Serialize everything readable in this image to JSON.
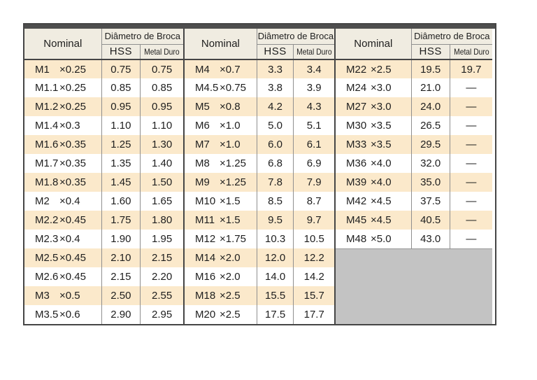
{
  "table": {
    "header": {
      "nominal_label": "Nominal",
      "diameter_label": "Diâmetro de Broca",
      "hss_label": "HSS",
      "metal_duro_label": "Metal Duro"
    },
    "colors": {
      "top_bar": "#4e4e4e",
      "header_bg": "#f0ece1",
      "row_band_bg": "#fbe9cb",
      "row_plain_bg": "#ffffff",
      "empty_area_bg": "#c3c3c3",
      "outer_border": "#454545",
      "inner_line": "#8f8f8f",
      "text": "#1e1e1e"
    },
    "groups": [
      {
        "empty_rows": 0,
        "rows": [
          {
            "size": "M1",
            "pitch": "×0.25",
            "hss": "0.75",
            "metal_duro": "0.75"
          },
          {
            "size": "M1.1",
            "pitch": "×0.25",
            "hss": "0.85",
            "metal_duro": "0.85"
          },
          {
            "size": "M1.2",
            "pitch": "×0.25",
            "hss": "0.95",
            "metal_duro": "0.95"
          },
          {
            "size": "M1.4",
            "pitch": "×0.3",
            "hss": "1.10",
            "metal_duro": "1.10"
          },
          {
            "size": "M1.6",
            "pitch": "×0.35",
            "hss": "1.25",
            "metal_duro": "1.30"
          },
          {
            "size": "M1.7",
            "pitch": "×0.35",
            "hss": "1.35",
            "metal_duro": "1.40"
          },
          {
            "size": "M1.8",
            "pitch": "×0.35",
            "hss": "1.45",
            "metal_duro": "1.50"
          },
          {
            "size": "M2",
            "pitch": "×0.4",
            "hss": "1.60",
            "metal_duro": "1.65"
          },
          {
            "size": "M2.2",
            "pitch": "×0.45",
            "hss": "1.75",
            "metal_duro": "1.80"
          },
          {
            "size": "M2.3",
            "pitch": "×0.4",
            "hss": "1.90",
            "metal_duro": "1.95"
          },
          {
            "size": "M2.5",
            "pitch": "×0.45",
            "hss": "2.10",
            "metal_duro": "2.15"
          },
          {
            "size": "M2.6",
            "pitch": "×0.45",
            "hss": "2.15",
            "metal_duro": "2.20"
          },
          {
            "size": "M3",
            "pitch": "×0.5",
            "hss": "2.50",
            "metal_duro": "2.55"
          },
          {
            "size": "M3.5",
            "pitch": "×0.6",
            "hss": "2.90",
            "metal_duro": "2.95"
          }
        ]
      },
      {
        "empty_rows": 0,
        "rows": [
          {
            "size": "M4",
            "pitch": "×0.7",
            "hss": "3.3",
            "metal_duro": "3.4"
          },
          {
            "size": "M4.5",
            "pitch": "×0.75",
            "hss": "3.8",
            "metal_duro": "3.9"
          },
          {
            "size": "M5",
            "pitch": "×0.8",
            "hss": "4.2",
            "metal_duro": "4.3"
          },
          {
            "size": "M6",
            "pitch": "×1.0",
            "hss": "5.0",
            "metal_duro": "5.1"
          },
          {
            "size": "M7",
            "pitch": "×1.0",
            "hss": "6.0",
            "metal_duro": "6.1"
          },
          {
            "size": "M8",
            "pitch": "×1.25",
            "hss": "6.8",
            "metal_duro": "6.9"
          },
          {
            "size": "M9",
            "pitch": "×1.25",
            "hss": "7.8",
            "metal_duro": "7.9"
          },
          {
            "size": "M10",
            "pitch": "×1.5",
            "hss": "8.5",
            "metal_duro": "8.7"
          },
          {
            "size": "M11",
            "pitch": "×1.5",
            "hss": "9.5",
            "metal_duro": "9.7"
          },
          {
            "size": "M12",
            "pitch": "×1.75",
            "hss": "10.3",
            "metal_duro": "10.5"
          },
          {
            "size": "M14",
            "pitch": "×2.0",
            "hss": "12.0",
            "metal_duro": "12.2"
          },
          {
            "size": "M16",
            "pitch": "×2.0",
            "hss": "14.0",
            "metal_duro": "14.2"
          },
          {
            "size": "M18",
            "pitch": "×2.5",
            "hss": "15.5",
            "metal_duro": "15.7"
          },
          {
            "size": "M20",
            "pitch": "×2.5",
            "hss": "17.5",
            "metal_duro": "17.7"
          }
        ]
      },
      {
        "empty_rows": 4,
        "rows": [
          {
            "size": "M22",
            "pitch": "×2.5",
            "hss": "19.5",
            "metal_duro": "19.7"
          },
          {
            "size": "M24",
            "pitch": "×3.0",
            "hss": "21.0",
            "metal_duro": "—"
          },
          {
            "size": "M27",
            "pitch": "×3.0",
            "hss": "24.0",
            "metal_duro": "—"
          },
          {
            "size": "M30",
            "pitch": "×3.5",
            "hss": "26.5",
            "metal_duro": "—"
          },
          {
            "size": "M33",
            "pitch": "×3.5",
            "hss": "29.5",
            "metal_duro": "—"
          },
          {
            "size": "M36",
            "pitch": "×4.0",
            "hss": "32.0",
            "metal_duro": "—"
          },
          {
            "size": "M39",
            "pitch": "×4.0",
            "hss": "35.0",
            "metal_duro": "—"
          },
          {
            "size": "M42",
            "pitch": "×4.5",
            "hss": "37.5",
            "metal_duro": "—"
          },
          {
            "size": "M45",
            "pitch": "×4.5",
            "hss": "40.5",
            "metal_duro": "—"
          },
          {
            "size": "M48",
            "pitch": "×5.0",
            "hss": "43.0",
            "metal_duro": "—"
          }
        ]
      }
    ]
  }
}
